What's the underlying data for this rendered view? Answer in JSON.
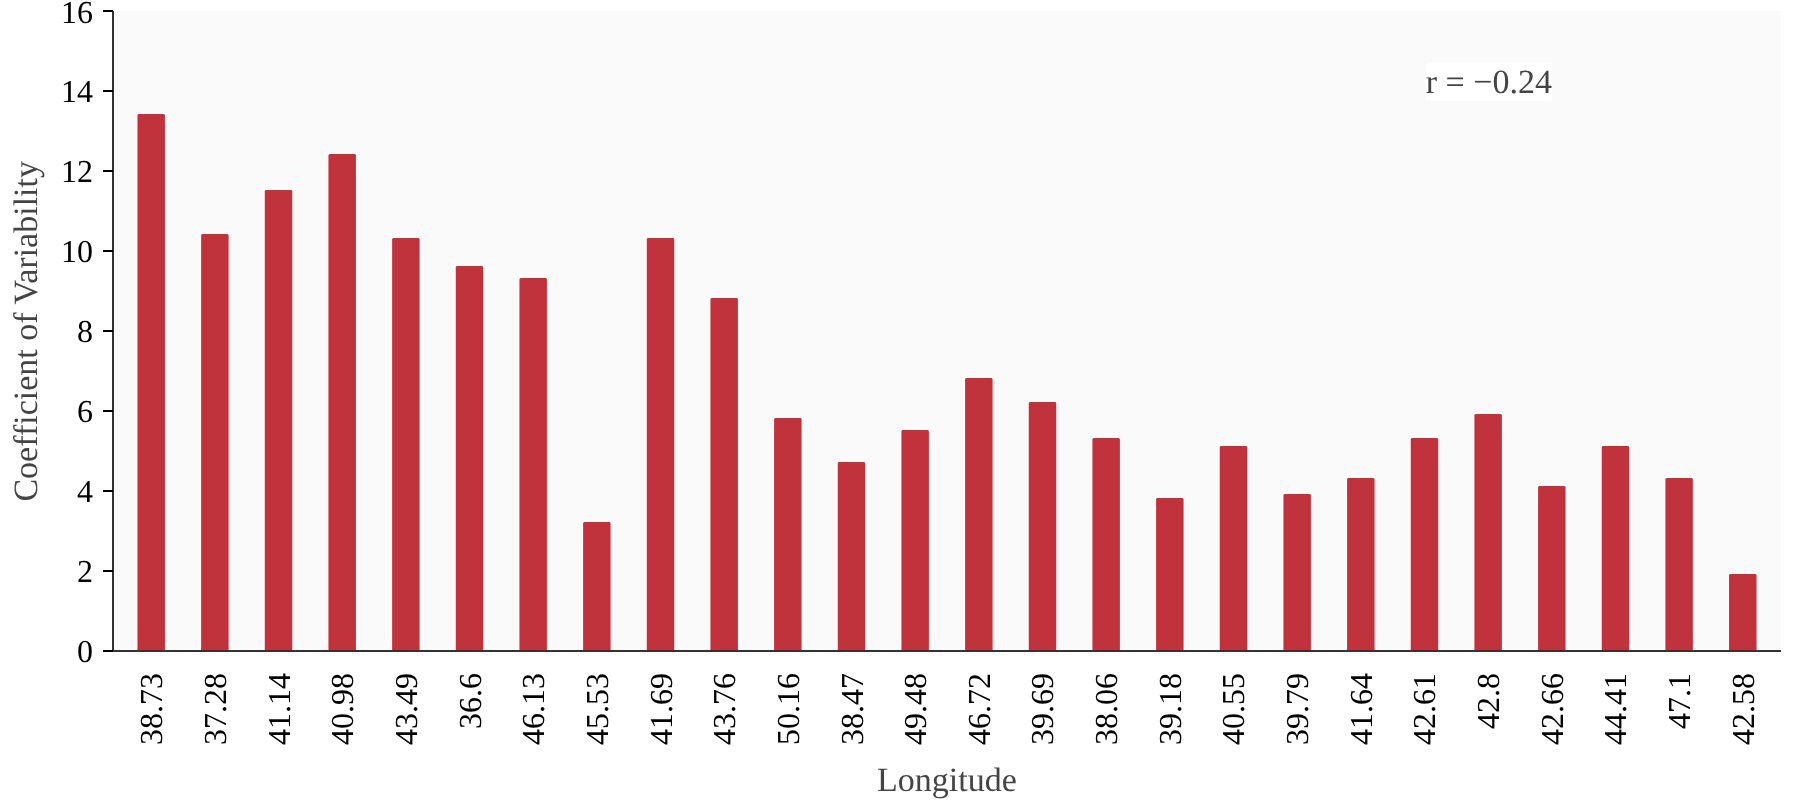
{
  "chart_data": {
    "type": "bar",
    "xlabel": "Longitude",
    "ylabel": "Coefficient of Variability",
    "categories": [
      "38.73",
      "37.28",
      "41.14",
      "40.98",
      "43.49",
      "36.6",
      "46.13",
      "45.53",
      "41.69",
      "43.76",
      "50.16",
      "38.47",
      "49.48",
      "46.72",
      "39.69",
      "38.06",
      "39.18",
      "40.55",
      "39.79",
      "41.64",
      "42.61",
      "42.8",
      "42.66",
      "44.41",
      "47.1",
      "42.58"
    ],
    "values": [
      13.4,
      10.4,
      11.5,
      12.4,
      10.3,
      9.6,
      9.3,
      3.2,
      10.3,
      8.8,
      5.8,
      4.7,
      5.5,
      6.8,
      6.2,
      5.3,
      3.8,
      5.1,
      3.9,
      4.3,
      5.3,
      5.9,
      4.1,
      5.1,
      4.3,
      1.9
    ],
    "color": "#c0323c",
    "ylim": [
      0,
      16
    ],
    "yticks": [
      0,
      2,
      4,
      6,
      8,
      10,
      12,
      14,
      16
    ],
    "grid": false,
    "annotations": [
      "r = −0.24"
    ]
  }
}
